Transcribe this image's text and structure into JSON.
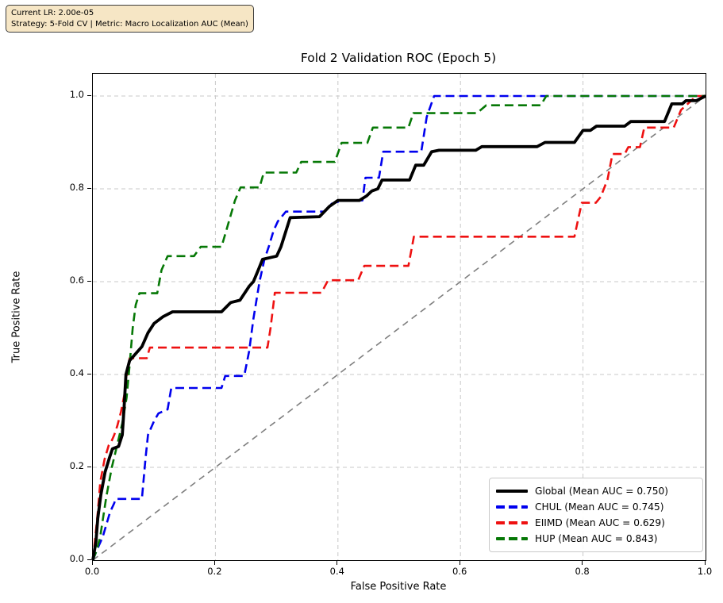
{
  "info_box": {
    "line1": "Current LR: 2.00e-05",
    "line2": "Strategy: 5-Fold CV | Metric: Macro Localization AUC (Mean)"
  },
  "chart_data": {
    "type": "line",
    "title": "Fold 2 Validation ROC (Epoch 5)",
    "xlabel": "False Positive Rate",
    "ylabel": "True Positive Rate",
    "xlim": [
      0,
      1.0
    ],
    "ylim": [
      0,
      1.05
    ],
    "x_ticks": [
      "0.0",
      "0.2",
      "0.4",
      "0.6",
      "0.8",
      "1.0"
    ],
    "y_ticks": [
      "0.0",
      "0.2",
      "0.4",
      "0.6",
      "0.8",
      "1.0"
    ],
    "grid": true,
    "grid_color": "#c9c9c9",
    "legend_position": "lower right",
    "reference_line": {
      "name": "chance-diagonal",
      "color": "#7f7f7f",
      "style": "dashed",
      "width": 1.6,
      "points": [
        [
          0,
          0
        ],
        [
          1,
          1
        ]
      ]
    },
    "series": [
      {
        "name": "Global",
        "label": "Global (Mean AUC = 0.750)",
        "mean_auc": 0.75,
        "color": "#000000",
        "style": "solid",
        "width": 3.8,
        "points": [
          [
            0,
            0
          ],
          [
            0.005,
            0.04
          ],
          [
            0.008,
            0.09
          ],
          [
            0.013,
            0.14
          ],
          [
            0.02,
            0.19
          ],
          [
            0.027,
            0.22
          ],
          [
            0.032,
            0.24
          ],
          [
            0.042,
            0.245
          ],
          [
            0.048,
            0.27
          ],
          [
            0.051,
            0.33
          ],
          [
            0.054,
            0.4
          ],
          [
            0.06,
            0.43
          ],
          [
            0.07,
            0.445
          ],
          [
            0.08,
            0.46
          ],
          [
            0.09,
            0.49
          ],
          [
            0.1,
            0.51
          ],
          [
            0.115,
            0.525
          ],
          [
            0.13,
            0.535
          ],
          [
            0.21,
            0.535
          ],
          [
            0.225,
            0.555
          ],
          [
            0.24,
            0.56
          ],
          [
            0.255,
            0.59
          ],
          [
            0.262,
            0.6
          ],
          [
            0.27,
            0.625
          ],
          [
            0.277,
            0.648
          ],
          [
            0.3,
            0.655
          ],
          [
            0.307,
            0.675
          ],
          [
            0.313,
            0.7
          ],
          [
            0.322,
            0.738
          ],
          [
            0.37,
            0.74
          ],
          [
            0.386,
            0.762
          ],
          [
            0.4,
            0.775
          ],
          [
            0.435,
            0.775
          ],
          [
            0.447,
            0.785
          ],
          [
            0.455,
            0.795
          ],
          [
            0.465,
            0.8
          ],
          [
            0.472,
            0.819
          ],
          [
            0.517,
            0.819
          ],
          [
            0.527,
            0.851
          ],
          [
            0.54,
            0.851
          ],
          [
            0.553,
            0.88
          ],
          [
            0.565,
            0.883
          ],
          [
            0.625,
            0.883
          ],
          [
            0.635,
            0.891
          ],
          [
            0.725,
            0.891
          ],
          [
            0.738,
            0.9
          ],
          [
            0.786,
            0.9
          ],
          [
            0.8,
            0.926
          ],
          [
            0.812,
            0.926
          ],
          [
            0.822,
            0.935
          ],
          [
            0.868,
            0.935
          ],
          [
            0.878,
            0.945
          ],
          [
            0.933,
            0.945
          ],
          [
            0.945,
            0.983
          ],
          [
            0.962,
            0.983
          ],
          [
            0.968,
            0.99
          ],
          [
            0.985,
            0.99
          ],
          [
            1,
            1
          ]
        ]
      },
      {
        "name": "CHUL",
        "label": "CHUL (Mean AUC = 0.745)",
        "mean_auc": 0.745,
        "color": "#0000ee",
        "style": "dashed",
        "width": 2.6,
        "points": [
          [
            0,
            0
          ],
          [
            0.006,
            0.02
          ],
          [
            0.016,
            0.05
          ],
          [
            0.028,
            0.103
          ],
          [
            0.035,
            0.123
          ],
          [
            0.037,
            0.132
          ],
          [
            0.08,
            0.132
          ],
          [
            0.086,
            0.22
          ],
          [
            0.09,
            0.27
          ],
          [
            0.1,
            0.3
          ],
          [
            0.107,
            0.316
          ],
          [
            0.122,
            0.325
          ],
          [
            0.128,
            0.371
          ],
          [
            0.21,
            0.371
          ],
          [
            0.216,
            0.397
          ],
          [
            0.247,
            0.397
          ],
          [
            0.255,
            0.45
          ],
          [
            0.262,
            0.52
          ],
          [
            0.272,
            0.6
          ],
          [
            0.28,
            0.648
          ],
          [
            0.287,
            0.675
          ],
          [
            0.295,
            0.71
          ],
          [
            0.302,
            0.73
          ],
          [
            0.315,
            0.751
          ],
          [
            0.377,
            0.751
          ],
          [
            0.39,
            0.768
          ],
          [
            0.407,
            0.775
          ],
          [
            0.44,
            0.775
          ],
          [
            0.445,
            0.824
          ],
          [
            0.467,
            0.824
          ],
          [
            0.474,
            0.88
          ],
          [
            0.536,
            0.88
          ],
          [
            0.545,
            0.955
          ],
          [
            0.557,
            1.0
          ],
          [
            1,
            1
          ]
        ]
      },
      {
        "name": "EIIMD",
        "label": "EIIMD (Mean AUC = 0.629)",
        "mean_auc": 0.629,
        "color": "#ee1111",
        "style": "dashed",
        "width": 2.6,
        "points": [
          [
            0,
            0
          ],
          [
            0.004,
            0.05
          ],
          [
            0.008,
            0.103
          ],
          [
            0.012,
            0.168
          ],
          [
            0.019,
            0.217
          ],
          [
            0.026,
            0.248
          ],
          [
            0.03,
            0.255
          ],
          [
            0.035,
            0.27
          ],
          [
            0.04,
            0.29
          ],
          [
            0.046,
            0.32
          ],
          [
            0.052,
            0.36
          ],
          [
            0.056,
            0.4
          ],
          [
            0.06,
            0.435
          ],
          [
            0.088,
            0.435
          ],
          [
            0.093,
            0.458
          ],
          [
            0.285,
            0.458
          ],
          [
            0.29,
            0.5
          ],
          [
            0.297,
            0.576
          ],
          [
            0.373,
            0.576
          ],
          [
            0.384,
            0.603
          ],
          [
            0.433,
            0.603
          ],
          [
            0.443,
            0.634
          ],
          [
            0.515,
            0.634
          ],
          [
            0.524,
            0.697
          ],
          [
            0.786,
            0.697
          ],
          [
            0.793,
            0.74
          ],
          [
            0.798,
            0.77
          ],
          [
            0.821,
            0.77
          ],
          [
            0.829,
            0.783
          ],
          [
            0.84,
            0.82
          ],
          [
            0.848,
            0.875
          ],
          [
            0.868,
            0.875
          ],
          [
            0.874,
            0.89
          ],
          [
            0.893,
            0.89
          ],
          [
            0.9,
            0.932
          ],
          [
            0.948,
            0.932
          ],
          [
            0.96,
            0.97
          ],
          [
            0.985,
            1.0
          ],
          [
            1,
            1
          ]
        ]
      },
      {
        "name": "HUP",
        "label": "HUP (Mean AUC = 0.843)",
        "mean_auc": 0.843,
        "color": "#067806",
        "style": "dashed",
        "width": 2.6,
        "points": [
          [
            0,
            0
          ],
          [
            0.006,
            0.02
          ],
          [
            0.012,
            0.051
          ],
          [
            0.022,
            0.137
          ],
          [
            0.031,
            0.2
          ],
          [
            0.04,
            0.25
          ],
          [
            0.048,
            0.295
          ],
          [
            0.055,
            0.35
          ],
          [
            0.06,
            0.42
          ],
          [
            0.065,
            0.5
          ],
          [
            0.07,
            0.55
          ],
          [
            0.076,
            0.575
          ],
          [
            0.105,
            0.575
          ],
          [
            0.112,
            0.625
          ],
          [
            0.122,
            0.655
          ],
          [
            0.165,
            0.655
          ],
          [
            0.176,
            0.675
          ],
          [
            0.21,
            0.675
          ],
          [
            0.22,
            0.72
          ],
          [
            0.232,
            0.775
          ],
          [
            0.241,
            0.803
          ],
          [
            0.272,
            0.803
          ],
          [
            0.279,
            0.835
          ],
          [
            0.332,
            0.835
          ],
          [
            0.34,
            0.858
          ],
          [
            0.395,
            0.858
          ],
          [
            0.406,
            0.899
          ],
          [
            0.448,
            0.899
          ],
          [
            0.457,
            0.932
          ],
          [
            0.515,
            0.932
          ],
          [
            0.523,
            0.963
          ],
          [
            0.627,
            0.963
          ],
          [
            0.642,
            0.98
          ],
          [
            0.731,
            0.98
          ],
          [
            0.74,
            1.0
          ],
          [
            1,
            1
          ]
        ]
      }
    ]
  }
}
